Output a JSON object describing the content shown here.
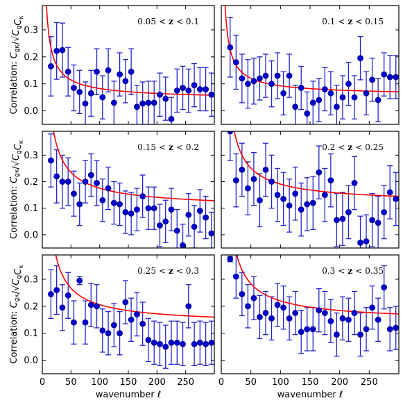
{
  "chart_data": {
    "type": "scatter",
    "layout": "3x2 grid, shared axes",
    "xlabel": "wavenumber ℓ",
    "ylabel": "Correlation: C_gκ/√(C_g C_κ)",
    "ylabel_parts": {
      "prefix": "Correlation: ",
      "num": "C",
      "num_sub": "gκ",
      "slash": "/",
      "den": "C",
      "den_sub1": "g",
      "den_mid": "C",
      "den_sub2": "κ"
    },
    "xlim": [
      0,
      300
    ],
    "ylim": [
      -0.05,
      0.39
    ],
    "xticks": [
      0,
      50,
      100,
      150,
      200,
      250
    ],
    "yticks": [
      0.0,
      0.1,
      0.2,
      0.3
    ],
    "ytick_labels": [
      "0.0",
      "0.1",
      "0.2",
      "0.3"
    ],
    "marker_color": "#0000cc",
    "marker_edge_color": "#000088",
    "errorbar_color": "#2222cc",
    "model_color": "#ff0000",
    "x": [
      15,
      25,
      35,
      45,
      55,
      65,
      75,
      85,
      95,
      105,
      115,
      125,
      135,
      145,
      155,
      165,
      175,
      185,
      195,
      205,
      215,
      225,
      235,
      245,
      255,
      265,
      275,
      285,
      295
    ],
    "panels": [
      {
        "label": "0.05 < z < 0.1",
        "label_parts": [
          "0.05",
          "<",
          "z",
          "<",
          "0.1"
        ],
        "y": [
          0.165,
          0.222,
          0.225,
          0.145,
          0.085,
          0.07,
          0.027,
          0.065,
          0.145,
          0.05,
          0.15,
          0.03,
          0.135,
          0.11,
          0.145,
          0.015,
          0.027,
          0.03,
          0.03,
          0.06,
          0.045,
          -0.03,
          0.075,
          0.085,
          0.075,
          0.095,
          0.08,
          0.08,
          0.06
        ],
        "err": [
          0.11,
          0.105,
          0.1,
          0.09,
          0.085,
          0.08,
          0.08,
          0.085,
          0.085,
          0.08,
          0.08,
          0.08,
          0.08,
          0.08,
          0.085,
          0.08,
          0.08,
          0.08,
          0.08,
          0.08,
          0.08,
          0.08,
          0.08,
          0.08,
          0.08,
          0.08,
          0.08,
          0.08,
          0.08
        ],
        "model": {
          "a": 0.04,
          "b": 1.7,
          "c": 0.8
        }
      },
      {
        "label": "0.1 < z < 0.15",
        "label_parts": [
          "0.1",
          "<",
          "z",
          "<",
          "0.15"
        ],
        "y": [
          0.235,
          0.18,
          0.12,
          0.1,
          0.11,
          0.12,
          0.13,
          0.1,
          0.13,
          0.065,
          0.13,
          0.015,
          0.085,
          -0.01,
          0.03,
          0.04,
          0.08,
          0.065,
          0.015,
          0.05,
          0.1,
          0.05,
          0.195,
          0.065,
          0.115,
          0.04,
          0.135,
          0.125,
          0.125
        ],
        "err": [
          0.11,
          0.1,
          0.09,
          0.09,
          0.085,
          0.08,
          0.08,
          0.085,
          0.085,
          0.08,
          0.08,
          0.08,
          0.08,
          0.08,
          0.08,
          0.08,
          0.08,
          0.08,
          0.08,
          0.08,
          0.08,
          0.08,
          0.08,
          0.08,
          0.08,
          0.08,
          0.08,
          0.08,
          0.08
        ],
        "model": {
          "a": 0.055,
          "b": 1.5,
          "c": 0.8
        }
      },
      {
        "label": "0.15 < z < 0.2",
        "label_parts": [
          "0.15",
          "<",
          "z",
          "<",
          "0.2"
        ],
        "y": [
          0.28,
          0.22,
          0.2,
          0.2,
          0.155,
          0.115,
          0.2,
          0.225,
          0.195,
          0.13,
          0.175,
          0.12,
          0.115,
          0.085,
          0.08,
          0.095,
          0.145,
          0.1,
          0.1,
          0.035,
          0.05,
          0.095,
          0.015,
          -0.04,
          0.075,
          0.03,
          0.09,
          0.065,
          0.005
        ],
        "err": [
          0.1,
          0.1,
          0.1,
          0.09,
          0.085,
          0.08,
          0.08,
          0.08,
          0.085,
          0.08,
          0.08,
          0.08,
          0.08,
          0.08,
          0.08,
          0.08,
          0.08,
          0.08,
          0.08,
          0.08,
          0.08,
          0.08,
          0.08,
          0.08,
          0.08,
          0.08,
          0.08,
          0.08,
          0.08
        ],
        "model": {
          "a": 0.095,
          "b": 3.2,
          "c": 0.8
        }
      },
      {
        "label": "0.2 < z < 0.25",
        "label_parts": [
          "0.2",
          "<",
          "z",
          "<",
          "0.25"
        ],
        "y": [
          0.39,
          0.205,
          0.245,
          0.175,
          0.21,
          0.13,
          0.245,
          0.2,
          0.15,
          0.135,
          0.11,
          0.155,
          0.095,
          0.115,
          0.12,
          0.235,
          0.15,
          0.205,
          0.055,
          0.06,
          0.085,
          0.195,
          -0.03,
          -0.025,
          0.055,
          0.045,
          0.085,
          0.16,
          0.135
        ],
        "err": [
          0.11,
          0.1,
          0.1,
          0.1,
          0.1,
          0.1,
          0.1,
          0.1,
          0.1,
          0.1,
          0.1,
          0.1,
          0.1,
          0.1,
          0.1,
          0.1,
          0.1,
          0.1,
          0.1,
          0.1,
          0.1,
          0.1,
          0.1,
          0.1,
          0.1,
          0.1,
          0.1,
          0.1,
          0.1
        ],
        "model": {
          "a": 0.115,
          "b": 3.8,
          "c": 0.85
        }
      },
      {
        "label": "0.25 < z < 0.3",
        "label_parts": [
          "0.25",
          "<",
          "z",
          "<",
          "0.3"
        ],
        "y": [
          0.245,
          0.26,
          0.195,
          0.24,
          0.14,
          0.295,
          0.14,
          0.205,
          0.2,
          0.11,
          0.1,
          0.13,
          0.1,
          0.215,
          0.15,
          0.17,
          0.135,
          0.075,
          0.065,
          0.06,
          0.05,
          0.065,
          0.065,
          0.06,
          0.2,
          0.06,
          0.065,
          0.06,
          0.065
        ],
        "err": [
          0.09,
          0.09,
          0.085,
          0.085,
          0.08,
          0.015,
          0.08,
          0.08,
          0.08,
          0.08,
          0.08,
          0.08,
          0.08,
          0.08,
          0.08,
          0.08,
          0.08,
          0.08,
          0.08,
          0.08,
          0.08,
          0.08,
          0.08,
          0.08,
          0.08,
          0.08,
          0.08,
          0.08,
          0.08
        ],
        "model": {
          "a": 0.13,
          "b": 3.8,
          "c": 0.85
        }
      },
      {
        "label": "0.3 < z < 0.35",
        "label_parts": [
          "0.3",
          "<",
          "z",
          "<",
          "0.35"
        ],
        "y": [
          0.375,
          0.31,
          0.245,
          0.2,
          0.23,
          0.16,
          0.175,
          0.155,
          0.205,
          0.195,
          0.155,
          0.175,
          0.105,
          0.115,
          0.115,
          0.185,
          0.175,
          0.145,
          0.095,
          0.155,
          0.15,
          0.175,
          0.095,
          0.115,
          0.195,
          0.15,
          0.27,
          0.115,
          0.12
        ],
        "err": [
          0.01,
          0.08,
          0.08,
          0.08,
          0.08,
          0.08,
          0.08,
          0.08,
          0.08,
          0.08,
          0.08,
          0.08,
          0.08,
          0.08,
          0.08,
          0.08,
          0.08,
          0.08,
          0.08,
          0.08,
          0.08,
          0.08,
          0.08,
          0.08,
          0.08,
          0.08,
          0.08,
          0.08,
          0.08
        ],
        "model": {
          "a": 0.14,
          "b": 4.0,
          "c": 0.85
        }
      }
    ]
  }
}
